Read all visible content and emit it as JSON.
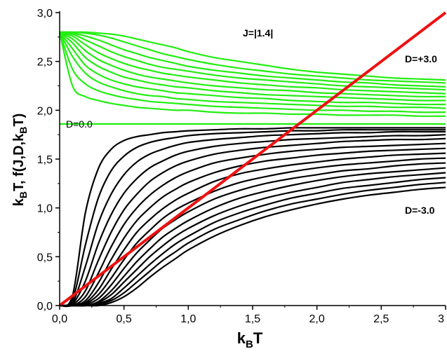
{
  "chart_data": {
    "type": "line",
    "xlabel": {
      "main": "k",
      "sub": "B",
      "tail": "T"
    },
    "ylabel": {
      "p1": "k",
      "s1": "B",
      "p2": "T, f(J,D,k",
      "s2": "B",
      "p3": "T)"
    },
    "xlim": [
      0,
      3
    ],
    "ylim": [
      0,
      3
    ],
    "x_ticks": [
      0,
      0.5,
      1,
      1.5,
      2,
      2.5,
      3
    ],
    "x_tick_labels": [
      "0,0",
      "0,5",
      "1,0",
      "1,5",
      "2,0",
      "2,5",
      "3"
    ],
    "y_ticks": [
      0,
      0.5,
      1,
      1.5,
      2,
      2.5,
      3
    ],
    "y_tick_labels": [
      "0,0",
      "0,5",
      "1,0",
      "1,5",
      "2,0",
      "2,5",
      "3,0"
    ],
    "grid": false,
    "annotations": {
      "j_label": "J=|1.4|",
      "d_pos": "D=+3.0",
      "d_zero": "D=0.0",
      "d_neg": "D=-3.0"
    },
    "colors": {
      "positive_D": "#22ee11",
      "negative_D": "#000000",
      "identity_line": "#ee1111"
    },
    "x": [
      0,
      0.1,
      0.2,
      0.3,
      0.4,
      0.5,
      0.6,
      0.7,
      0.8,
      0.9,
      1.0,
      1.2,
      1.4,
      1.6,
      1.8,
      2.0,
      2.2,
      2.4,
      2.6,
      2.8,
      3.0
    ],
    "series_green": [
      [
        2.8,
        2.8,
        2.8,
        2.79,
        2.78,
        2.76,
        2.73,
        2.7,
        2.67,
        2.64,
        2.6,
        2.54,
        2.5,
        2.46,
        2.42,
        2.39,
        2.37,
        2.35,
        2.33,
        2.32,
        2.31
      ],
      [
        2.8,
        2.8,
        2.79,
        2.77,
        2.74,
        2.7,
        2.66,
        2.62,
        2.58,
        2.55,
        2.52,
        2.47,
        2.43,
        2.4,
        2.37,
        2.35,
        2.33,
        2.31,
        2.3,
        2.29,
        2.28
      ],
      [
        2.8,
        2.79,
        2.76,
        2.72,
        2.67,
        2.62,
        2.58,
        2.54,
        2.51,
        2.48,
        2.45,
        2.41,
        2.38,
        2.35,
        2.33,
        2.31,
        2.29,
        2.28,
        2.26,
        2.25,
        2.24
      ],
      [
        2.8,
        2.78,
        2.72,
        2.66,
        2.6,
        2.55,
        2.51,
        2.47,
        2.44,
        2.42,
        2.4,
        2.36,
        2.33,
        2.31,
        2.29,
        2.27,
        2.25,
        2.24,
        2.23,
        2.22,
        2.21
      ],
      [
        2.8,
        2.76,
        2.67,
        2.59,
        2.53,
        2.48,
        2.44,
        2.41,
        2.38,
        2.36,
        2.34,
        2.31,
        2.28,
        2.26,
        2.24,
        2.23,
        2.21,
        2.2,
        2.19,
        2.18,
        2.17
      ],
      [
        2.8,
        2.73,
        2.61,
        2.52,
        2.46,
        2.41,
        2.37,
        2.34,
        2.32,
        2.3,
        2.28,
        2.25,
        2.23,
        2.21,
        2.2,
        2.18,
        2.17,
        2.16,
        2.15,
        2.14,
        2.14
      ],
      [
        2.8,
        2.69,
        2.54,
        2.45,
        2.39,
        2.34,
        2.31,
        2.28,
        2.26,
        2.24,
        2.23,
        2.2,
        2.18,
        2.16,
        2.15,
        2.14,
        2.13,
        2.12,
        2.11,
        2.1,
        2.1
      ],
      [
        2.8,
        2.63,
        2.46,
        2.37,
        2.31,
        2.27,
        2.24,
        2.22,
        2.2,
        2.18,
        2.17,
        2.15,
        2.13,
        2.12,
        2.1,
        2.09,
        2.08,
        2.08,
        2.07,
        2.06,
        2.06
      ],
      [
        2.8,
        2.55,
        2.38,
        2.29,
        2.24,
        2.2,
        2.17,
        2.15,
        2.14,
        2.12,
        2.11,
        2.09,
        2.08,
        2.07,
        2.06,
        2.05,
        2.04,
        2.04,
        2.03,
        2.03,
        2.02
      ],
      [
        2.8,
        2.42,
        2.27,
        2.2,
        2.16,
        2.13,
        2.11,
        2.09,
        2.08,
        2.07,
        2.06,
        2.04,
        2.03,
        2.02,
        2.01,
        2.0,
        2.0,
        1.99,
        1.99,
        1.98,
        1.98
      ],
      [
        2.8,
        2.25,
        2.14,
        2.1,
        2.07,
        2.05,
        2.03,
        2.02,
        2.01,
        2.0,
        2.0,
        1.98,
        1.97,
        1.97,
        1.96,
        1.96,
        1.95,
        1.95,
        1.95,
        1.94,
        1.94
      ],
      [
        1.86,
        1.86,
        1.86,
        1.86,
        1.86,
        1.86,
        1.86,
        1.86,
        1.86,
        1.86,
        1.86,
        1.86,
        1.86,
        1.86,
        1.86,
        1.86,
        1.86,
        1.86,
        1.86,
        1.86,
        1.86
      ]
    ],
    "series_black": [
      [
        0,
        0.1,
        0.95,
        1.4,
        1.6,
        1.69,
        1.73,
        1.75,
        1.77,
        1.78,
        1.79,
        1.8,
        1.81,
        1.81,
        1.82,
        1.82,
        1.82,
        1.82,
        1.82,
        1.82,
        1.82
      ],
      [
        0,
        0.06,
        0.62,
        1.1,
        1.38,
        1.53,
        1.62,
        1.67,
        1.7,
        1.72,
        1.74,
        1.76,
        1.77,
        1.78,
        1.79,
        1.79,
        1.8,
        1.8,
        1.8,
        1.8,
        1.8
      ],
      [
        0,
        0.03,
        0.4,
        0.84,
        1.14,
        1.34,
        1.47,
        1.55,
        1.6,
        1.64,
        1.67,
        1.7,
        1.72,
        1.74,
        1.75,
        1.76,
        1.77,
        1.77,
        1.78,
        1.78,
        1.78
      ],
      [
        0,
        0.02,
        0.25,
        0.63,
        0.93,
        1.15,
        1.3,
        1.41,
        1.48,
        1.54,
        1.58,
        1.63,
        1.66,
        1.68,
        1.7,
        1.71,
        1.72,
        1.73,
        1.74,
        1.74,
        1.75
      ],
      [
        0,
        0.01,
        0.15,
        0.46,
        0.75,
        0.98,
        1.14,
        1.27,
        1.36,
        1.43,
        1.48,
        1.55,
        1.59,
        1.62,
        1.64,
        1.66,
        1.68,
        1.69,
        1.7,
        1.7,
        1.71
      ],
      [
        0,
        0,
        0.09,
        0.33,
        0.6,
        0.83,
        1.0,
        1.13,
        1.23,
        1.31,
        1.37,
        1.46,
        1.51,
        1.55,
        1.58,
        1.6,
        1.62,
        1.63,
        1.64,
        1.65,
        1.66
      ],
      [
        0,
        0,
        0.05,
        0.23,
        0.47,
        0.69,
        0.87,
        1.0,
        1.11,
        1.19,
        1.26,
        1.36,
        1.43,
        1.48,
        1.51,
        1.54,
        1.56,
        1.58,
        1.59,
        1.6,
        1.61
      ],
      [
        0,
        0,
        0.03,
        0.16,
        0.37,
        0.57,
        0.75,
        0.88,
        0.99,
        1.08,
        1.15,
        1.27,
        1.35,
        1.4,
        1.44,
        1.47,
        1.5,
        1.52,
        1.54,
        1.55,
        1.56
      ],
      [
        0,
        0,
        0.02,
        0.11,
        0.28,
        0.47,
        0.64,
        0.77,
        0.89,
        0.98,
        1.05,
        1.17,
        1.26,
        1.32,
        1.37,
        1.41,
        1.44,
        1.46,
        1.48,
        1.5,
        1.51
      ],
      [
        0,
        0,
        0.01,
        0.07,
        0.21,
        0.38,
        0.54,
        0.67,
        0.79,
        0.88,
        0.96,
        1.09,
        1.18,
        1.25,
        1.3,
        1.34,
        1.38,
        1.4,
        1.43,
        1.45,
        1.46
      ],
      [
        0,
        0,
        0,
        0.04,
        0.15,
        0.3,
        0.45,
        0.58,
        0.7,
        0.79,
        0.87,
        1.0,
        1.1,
        1.17,
        1.23,
        1.28,
        1.32,
        1.35,
        1.37,
        1.39,
        1.41
      ],
      [
        0,
        0,
        0,
        0.03,
        0.11,
        0.24,
        0.37,
        0.5,
        0.61,
        0.71,
        0.79,
        0.92,
        1.02,
        1.1,
        1.16,
        1.21,
        1.26,
        1.29,
        1.32,
        1.34,
        1.36
      ],
      [
        0,
        0,
        0,
        0.02,
        0.07,
        0.18,
        0.3,
        0.42,
        0.53,
        0.63,
        0.71,
        0.85,
        0.95,
        1.03,
        1.1,
        1.15,
        1.2,
        1.23,
        1.26,
        1.29,
        1.31
      ],
      [
        0,
        0,
        0,
        0.01,
        0.05,
        0.13,
        0.24,
        0.35,
        0.46,
        0.55,
        0.64,
        0.78,
        0.88,
        0.97,
        1.04,
        1.09,
        1.14,
        1.18,
        1.21,
        1.24,
        1.26
      ],
      [
        0,
        0,
        0,
        0,
        0.03,
        0.09,
        0.18,
        0.29,
        0.39,
        0.48,
        0.57,
        0.71,
        0.82,
        0.91,
        0.98,
        1.04,
        1.09,
        1.13,
        1.16,
        1.19,
        1.21
      ]
    ],
    "series_red": {
      "x": [
        0,
        3
      ],
      "y": [
        0,
        3
      ]
    }
  }
}
